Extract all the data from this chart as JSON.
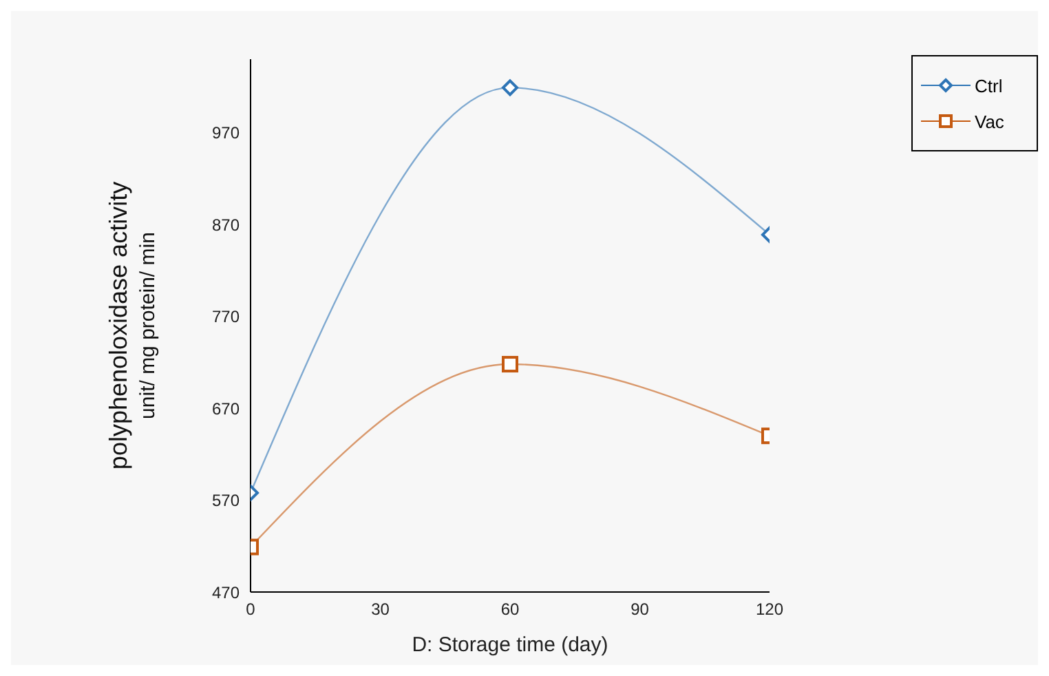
{
  "chart_data": {
    "type": "line",
    "xlabel": "D: Storage time (day)",
    "ylabel": "polyphenoloxidase activity\nunit/ mg protein/ min",
    "x": [
      0,
      60,
      120
    ],
    "series": [
      {
        "name": "Ctrl",
        "color": "#2e75b6",
        "values": [
          578,
          1019,
          859
        ],
        "marker": "diamond"
      },
      {
        "name": "Vac",
        "color": "#c55a11",
        "values": [
          519,
          718,
          640
        ],
        "marker": "square"
      }
    ],
    "xlim": [
      0,
      120
    ],
    "xticks": [
      0,
      30,
      60,
      90,
      120
    ],
    "ylim": [
      470,
      1050
    ],
    "yticks": [
      470,
      570,
      670,
      770,
      870,
      970
    ],
    "legend": "right",
    "line_style": "solid",
    "grid": false
  }
}
